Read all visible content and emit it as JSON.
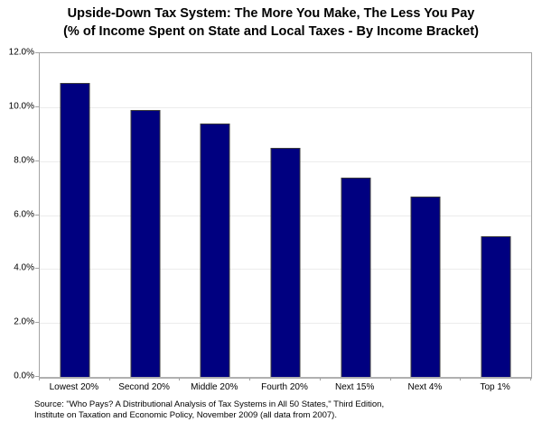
{
  "title": {
    "line1": "Upside-Down Tax System: The More You Make, The Less You Pay",
    "line2": "(% of Income Spent on State and Local Taxes - By Income Bracket)"
  },
  "chart_data": {
    "type": "bar",
    "title": "Upside-Down Tax System: The More You Make, The Less You Pay (% of Income Spent on State and Local Taxes - By Income Bracket)",
    "categories": [
      "Lowest 20%",
      "Second 20%",
      "Middle 20%",
      "Fourth 20%",
      "Next 15%",
      "Next 4%",
      "Top 1%"
    ],
    "values": [
      10.9,
      9.9,
      9.4,
      8.5,
      7.4,
      6.7,
      5.2
    ],
    "xlabel": "",
    "ylabel": "",
    "ylim": [
      0,
      12
    ],
    "ytick_step": 2,
    "ytick_labels": [
      "0.0%",
      "2.0%",
      "4.0%",
      "6.0%",
      "8.0%",
      "10.0%",
      "12.0%"
    ],
    "grid": true,
    "legend_position": "none",
    "bar_color": "#000080",
    "bar_border_color": "#3c3c3c",
    "gridline_color": "#ececec",
    "plot_border_color": "#a3a3a3"
  },
  "source": {
    "line1": "Source: \"Who Pays? A Distributional Analysis of Tax Systems in All 50 States,\" Third Edition,",
    "line2": "Institute on Taxation and Economic Policy, November 2009 (all data from 2007)."
  }
}
